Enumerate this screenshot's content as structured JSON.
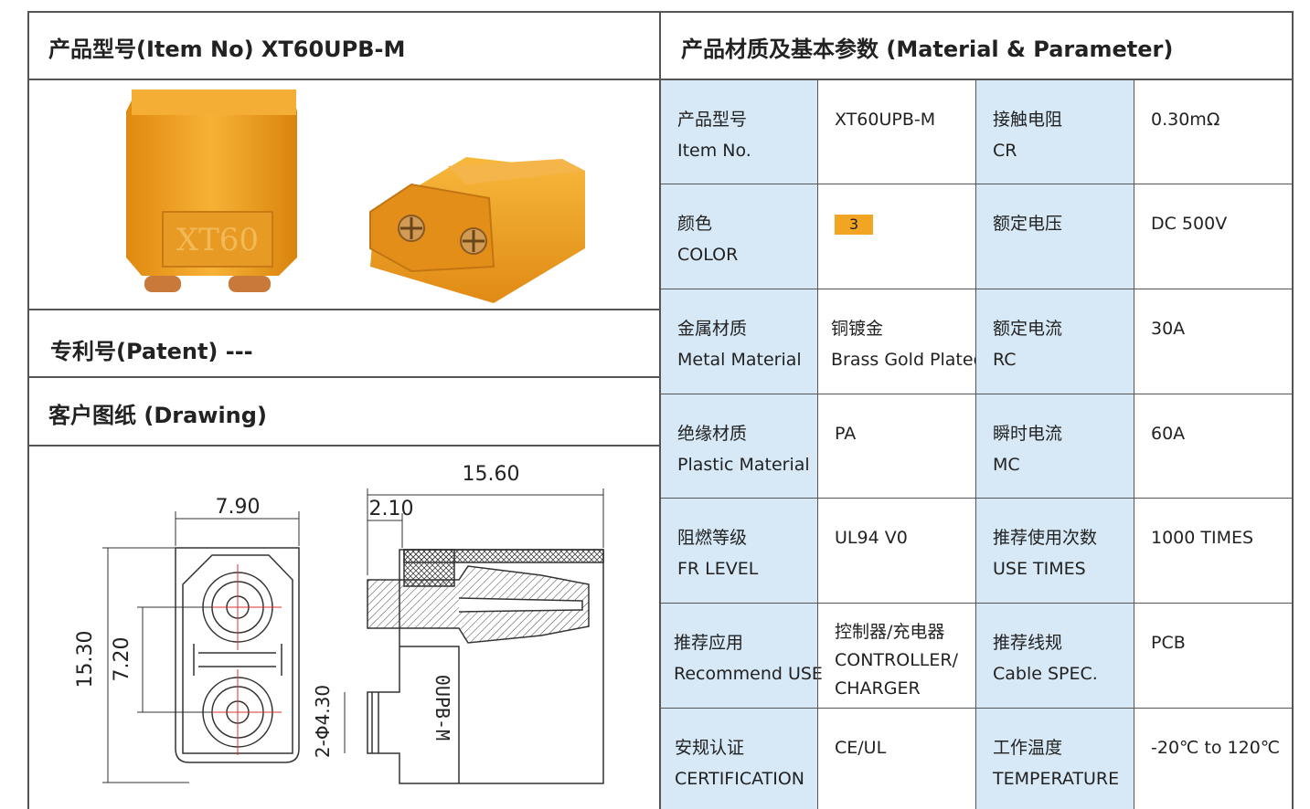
{
  "left_header": {
    "title": "产品型号(Item No)  XT60UPB-M"
  },
  "right_header": {
    "title": "产品材质及基本参数 (Material & Parameter)"
  },
  "patent": {
    "title": "专利号(Patent) ---"
  },
  "drawing_section": {
    "title": "客户图纸 (Drawing)"
  },
  "photo": {
    "embossed_text": "XT60"
  },
  "drawing": {
    "dim_width": "7.90",
    "dim_length": "15.60",
    "dim_offset": "2.10",
    "dim_height": "15.30",
    "dim_pitch": "7.20",
    "dim_pin": "2-Φ4.30",
    "part_text": "0UPB-M"
  },
  "params": [
    {
      "label_cn": "产品型号",
      "label_en": "Item No.",
      "value": [
        "XT60UPB-M"
      ],
      "label2_cn": "接触电阻",
      "label2_en": "CR",
      "value2": "0.30mΩ"
    },
    {
      "label_cn": "颜色",
      "label_en": "COLOR",
      "value": [
        "3"
      ],
      "swatch_color": "#f2a522",
      "label2_cn": "额定电压",
      "label2_en": "",
      "value2": "DC 500V"
    },
    {
      "label_cn": "金属材质",
      "label_en": "Metal Material",
      "value": [
        "铜镀金",
        "Brass Gold Plated"
      ],
      "label2_cn": "额定电流",
      "label2_en": "RC",
      "value2": "30A"
    },
    {
      "label_cn": "绝缘材质",
      "label_en": "Plastic Material",
      "value": [
        "PA"
      ],
      "label2_cn": "瞬时电流",
      "label2_en": "MC",
      "value2": "60A"
    },
    {
      "label_cn": "阻燃等级",
      "label_en": "FR LEVEL",
      "value": [
        "UL94 V0"
      ],
      "label2_cn": "推荐使用次数",
      "label2_en": "USE TIMES",
      "value2": "1000 TIMES"
    },
    {
      "label_cn": "推荐应用",
      "label_en": "Recommend USE",
      "value": [
        "控制器/充电器",
        "CONTROLLER/",
        "CHARGER"
      ],
      "label2_cn": "推荐线规",
      "label2_en": "Cable SPEC.",
      "value2": "PCB"
    },
    {
      "label_cn": "安规认证",
      "label_en": "CERTIFICATION",
      "value": [
        "CE/UL"
      ],
      "label2_cn": "工作温度",
      "label2_en": "TEMPERATURE",
      "value2": "-20℃ to 120℃"
    }
  ],
  "colors": {
    "label_bg": "#d7e8f6",
    "connector": "#f2a522",
    "border": "#555555"
  }
}
